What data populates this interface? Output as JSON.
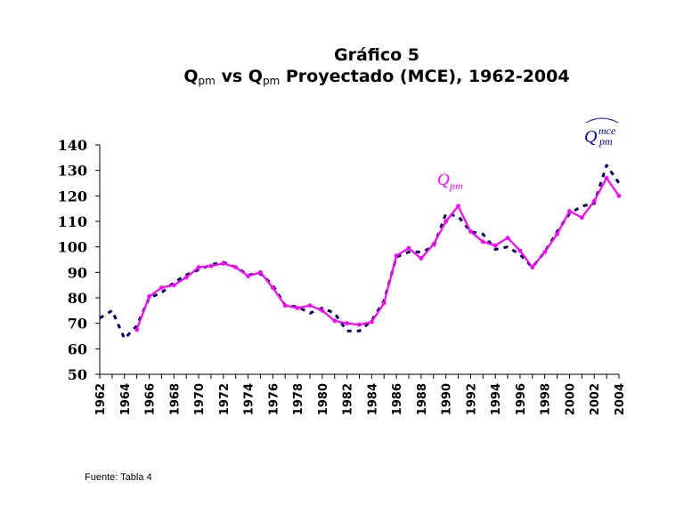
{
  "chart_data": {
    "type": "line",
    "title_line1": "Gráfico 5",
    "title_line2": {
      "q1": "Q",
      "sub1": "pm",
      "vs": " vs ",
      "q2": "Q",
      "sub2": "pm",
      "rest": " Proyectado (MCE), 1962-2004"
    },
    "xlabel": "",
    "ylabel": "",
    "ylim": [
      50,
      140
    ],
    "yticks": [
      "50",
      "60",
      "70",
      "80",
      "90",
      "100",
      "110",
      "120",
      "130",
      "140"
    ],
    "categories": [
      "1962",
      "1963",
      "1964",
      "1965",
      "1966",
      "1967",
      "1968",
      "1969",
      "1970",
      "1971",
      "1972",
      "1973",
      "1974",
      "1975",
      "1976",
      "1977",
      "1978",
      "1979",
      "1980",
      "1981",
      "1982",
      "1983",
      "1984",
      "1985",
      "1986",
      "1987",
      "1988",
      "1989",
      "1990",
      "1991",
      "1992",
      "1993",
      "1994",
      "1995",
      "1996",
      "1997",
      "1998",
      "1999",
      "2000",
      "2001",
      "2002",
      "2003",
      "2004"
    ],
    "xtick_labels": [
      "1962",
      "1964",
      "1966",
      "1968",
      "1970",
      "1972",
      "1974",
      "1976",
      "1978",
      "1980",
      "1982",
      "1984",
      "1986",
      "1988",
      "1990",
      "1992",
      "1994",
      "1996",
      "1998",
      "2000",
      "2002",
      "2004"
    ],
    "grid": false,
    "series": [
      {
        "name": "Qpm",
        "label_base": "Q",
        "label_sub": "pm",
        "color": "#ff00ff",
        "style": "solid",
        "values": [
          null,
          null,
          null,
          67.5,
          80.5,
          84,
          85,
          88,
          92,
          92.5,
          93.5,
          92,
          88.5,
          90,
          84,
          77,
          76,
          77,
          75,
          71,
          70,
          69.5,
          70.5,
          78,
          96.5,
          99.5,
          95.5,
          101,
          110,
          116,
          106,
          102,
          100.5,
          103.5,
          98.5,
          92,
          98,
          105,
          114,
          111.5,
          118,
          127,
          120
        ]
      },
      {
        "name": "Qpm mce (proyectado)",
        "label_base": "Q",
        "label_sup": "mce",
        "label_sub": "pm",
        "color": "#000066",
        "style": "dashed",
        "values": [
          72,
          75,
          64,
          69,
          80,
          82,
          86,
          89,
          91,
          93,
          94,
          92,
          89,
          89.5,
          85,
          77,
          76.5,
          74,
          76,
          74,
          67,
          67,
          71,
          79,
          96,
          98,
          98,
          100,
          113,
          112,
          106,
          105,
          99,
          100,
          97,
          92,
          98,
          106,
          113,
          116,
          117,
          132,
          125
        ]
      }
    ]
  },
  "source": "Fuente: Tabla 4"
}
